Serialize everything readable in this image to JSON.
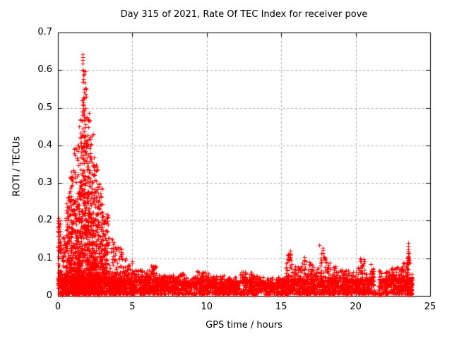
{
  "chart_data": {
    "type": "scatter",
    "title": "Day 315 of 2021, Rate Of TEC Index for receiver pove",
    "xlabel": "GPS time / hours",
    "ylabel": "ROTI / TECUs",
    "xlim": [
      0,
      25
    ],
    "ylim": [
      0,
      0.7
    ],
    "xticks": [
      "0",
      "5",
      "10",
      "15",
      "20",
      "25"
    ],
    "xtick_values": [
      0,
      5,
      10,
      15,
      20,
      25
    ],
    "yticks": [
      "0",
      "0.1",
      "0.2",
      "0.3",
      "0.4",
      "0.5",
      "0.6",
      "0.7"
    ],
    "ytick_values": [
      0,
      0.1,
      0.2,
      0.3,
      0.4,
      0.5,
      0.6,
      0.7
    ],
    "grid": true,
    "grid_style": "dashed",
    "grid_color": "#a8a8a8",
    "border_color": "#000000",
    "legend": null,
    "marker": "plus",
    "marker_color": "#ff0000",
    "marker_size": 7,
    "point_cloud_model": {
      "comment_columns": [
        "x_start_hours",
        "x_end_hours",
        "n_points",
        "y_max_tecu"
      ],
      "segments": [
        [
          0.0,
          0.15,
          70,
          0.21
        ],
        [
          0.15,
          0.5,
          160,
          0.16
        ],
        [
          0.5,
          0.8,
          170,
          0.28
        ],
        [
          0.8,
          1.1,
          200,
          0.34
        ],
        [
          1.1,
          1.4,
          220,
          0.41
        ],
        [
          1.4,
          1.65,
          220,
          0.47
        ],
        [
          1.65,
          1.9,
          240,
          0.6
        ],
        [
          1.9,
          2.15,
          230,
          0.5
        ],
        [
          2.15,
          2.4,
          210,
          0.43
        ],
        [
          2.4,
          2.7,
          190,
          0.37
        ],
        [
          2.7,
          3.0,
          170,
          0.3
        ],
        [
          3.0,
          3.4,
          160,
          0.22
        ],
        [
          3.4,
          3.8,
          150,
          0.16
        ],
        [
          3.8,
          4.3,
          150,
          0.13
        ],
        [
          4.3,
          5.0,
          170,
          0.1
        ],
        [
          5.0,
          6.0,
          190,
          0.07
        ],
        [
          6.0,
          6.6,
          115,
          0.08
        ],
        [
          6.6,
          7.5,
          155,
          0.055
        ],
        [
          7.5,
          8.5,
          165,
          0.06
        ],
        [
          8.5,
          9.3,
          135,
          0.05
        ],
        [
          9.3,
          10.2,
          155,
          0.065
        ],
        [
          10.2,
          11.2,
          165,
          0.055
        ],
        [
          11.2,
          12.2,
          165,
          0.05
        ],
        [
          12.2,
          13.0,
          145,
          0.065
        ],
        [
          13.0,
          14.0,
          165,
          0.055
        ],
        [
          14.0,
          15.3,
          210,
          0.05
        ],
        [
          15.3,
          15.75,
          95,
          0.115
        ],
        [
          15.75,
          16.4,
          115,
          0.08
        ],
        [
          16.4,
          17.0,
          115,
          0.1
        ],
        [
          17.0,
          17.6,
          115,
          0.085
        ],
        [
          17.6,
          18.0,
          85,
          0.125
        ],
        [
          18.0,
          18.7,
          125,
          0.09
        ],
        [
          18.7,
          19.5,
          135,
          0.07
        ],
        [
          19.5,
          20.1,
          115,
          0.065
        ],
        [
          20.1,
          20.6,
          105,
          0.1
        ],
        [
          20.6,
          21.25,
          115,
          0.075
        ],
        [
          21.25,
          21.55,
          8,
          0.015
        ],
        [
          21.55,
          22.3,
          135,
          0.07
        ],
        [
          22.3,
          23.2,
          160,
          0.08
        ],
        [
          23.2,
          23.45,
          75,
          0.09
        ],
        [
          23.45,
          23.65,
          75,
          0.12
        ],
        [
          23.65,
          23.8,
          45,
          0.06
        ]
      ],
      "spike_columns": [
        {
          "x": 0.06,
          "ys": [
            0.17,
            0.178,
            0.186,
            0.194,
            0.2
          ]
        },
        {
          "x": 0.12,
          "ys": [
            0.163,
            0.173
          ]
        },
        {
          "x": 1.68,
          "ys": [
            0.618,
            0.627,
            0.635,
            0.641
          ]
        },
        {
          "x": 1.73,
          "ys": [
            0.585,
            0.598
          ]
        },
        {
          "x": 1.7,
          "ys": [
            0.5,
            0.507,
            0.515,
            0.522
          ]
        },
        {
          "x": 1.74,
          "ys": [
            0.468,
            0.476,
            0.483,
            0.49
          ]
        },
        {
          "x": 1.62,
          "ys": [
            0.49,
            0.52
          ]
        },
        {
          "x": 15.5,
          "ys": [
            0.095,
            0.103,
            0.11
          ]
        },
        {
          "x": 15.62,
          "ys": [
            0.1,
            0.108,
            0.115,
            0.12
          ]
        },
        {
          "x": 16.55,
          "ys": [
            0.095,
            0.103
          ]
        },
        {
          "x": 17.55,
          "ys": [
            0.135
          ]
        },
        {
          "x": 17.8,
          "ys": [
            0.115,
            0.122,
            0.128
          ]
        },
        {
          "x": 20.3,
          "ys": [
            0.092,
            0.1
          ]
        },
        {
          "x": 21.0,
          "ys": [
            0.085
          ]
        },
        {
          "x": 23.45,
          "ys": [
            0.08,
            0.088
          ]
        },
        {
          "x": 23.55,
          "ys": [
            0.085,
            0.095,
            0.105,
            0.115,
            0.124,
            0.132,
            0.14
          ]
        }
      ]
    }
  }
}
